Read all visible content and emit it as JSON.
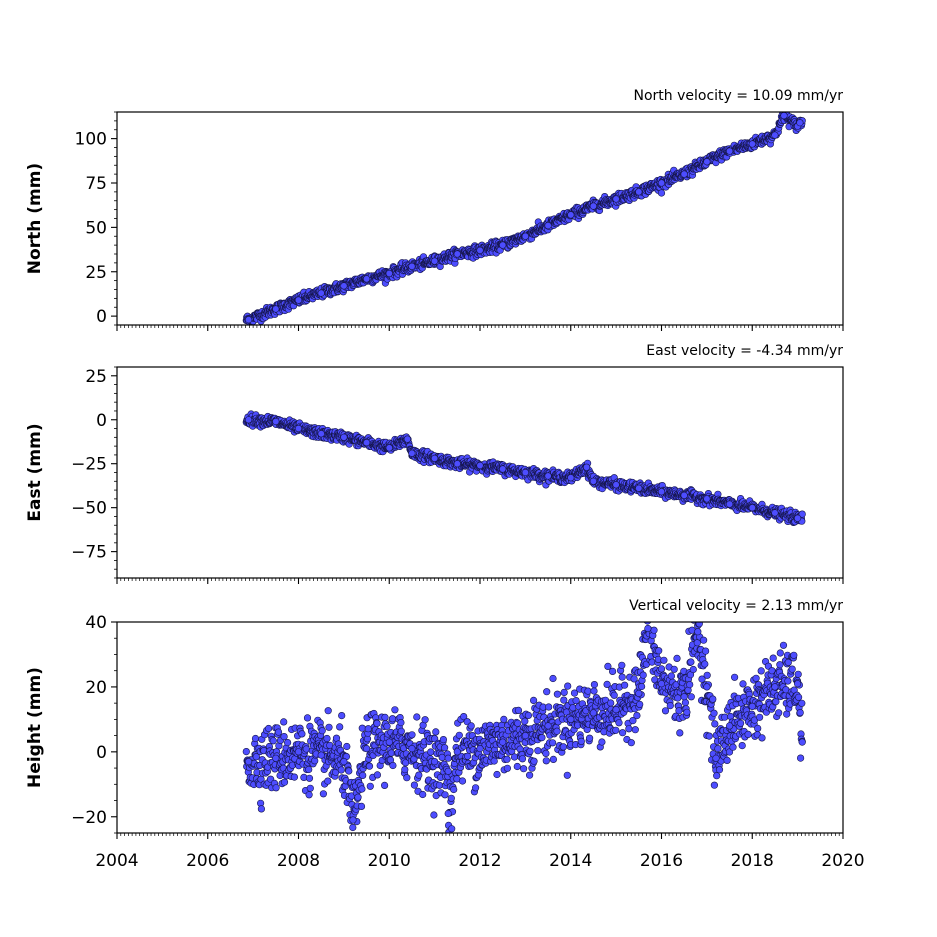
{
  "chart_data": [
    {
      "type": "scatter",
      "id": "north",
      "ylabel": "North (mm)",
      "annotation": "North velocity = 10.09 mm/yr",
      "xlim": [
        2004,
        2020
      ],
      "ylim": [
        -5,
        115
      ],
      "yticks": [
        0,
        25,
        50,
        75,
        100
      ],
      "yminor_step": 5,
      "xticks": [
        2004,
        2006,
        2008,
        2010,
        2012,
        2014,
        2016,
        2018,
        2020
      ],
      "show_xtick_labels": false,
      "x_start": 2006.85,
      "x_end": 2019.1,
      "velocity": 10.09,
      "series": [
        {
          "points": [
            [
              2006.9,
              -2
            ],
            [
              2007.5,
              4
            ],
            [
              2008.0,
              9
            ],
            [
              2008.5,
              13
            ],
            [
              2009.0,
              17
            ],
            [
              2009.5,
              21
            ],
            [
              2010.0,
              24
            ],
            [
              2010.5,
              28
            ],
            [
              2011.0,
              31
            ],
            [
              2011.5,
              35
            ],
            [
              2012.0,
              37
            ],
            [
              2012.5,
              40
            ],
            [
              2013.0,
              45
            ],
            [
              2013.5,
              51
            ],
            [
              2014.0,
              57
            ],
            [
              2014.5,
              62
            ],
            [
              2015.0,
              66
            ],
            [
              2015.5,
              70
            ],
            [
              2016.0,
              75
            ],
            [
              2016.5,
              80
            ],
            [
              2017.0,
              87
            ],
            [
              2017.5,
              93
            ],
            [
              2018.0,
              97
            ],
            [
              2018.5,
              102
            ],
            [
              2019.0,
              107
            ],
            [
              2019.05,
              109
            ],
            [
              2018.7,
              113
            ]
          ]
        }
      ]
    },
    {
      "type": "scatter",
      "id": "east",
      "ylabel": "East (mm)",
      "annotation": "East velocity = -4.34 mm/yr",
      "xlim": [
        2004,
        2020
      ],
      "ylim": [
        -90,
        30
      ],
      "yticks": [
        -75,
        -50,
        -25,
        0,
        25
      ],
      "yminor_step": 5,
      "xticks": [
        2004,
        2006,
        2008,
        2010,
        2012,
        2014,
        2016,
        2018,
        2020
      ],
      "show_xtick_labels": false,
      "x_start": 2006.85,
      "x_end": 2019.1,
      "velocity": -4.34,
      "series": [
        {
          "points": [
            [
              2006.9,
              0
            ],
            [
              2007.5,
              -1
            ],
            [
              2008.0,
              -5
            ],
            [
              2008.5,
              -8
            ],
            [
              2009.0,
              -10
            ],
            [
              2009.5,
              -13
            ],
            [
              2010.0,
              -16
            ],
            [
              2010.5,
              -19
            ],
            [
              2011.0,
              -22
            ],
            [
              2011.5,
              -25
            ],
            [
              2012.0,
              -26
            ],
            [
              2012.5,
              -28
            ],
            [
              2013.0,
              -30
            ],
            [
              2013.5,
              -32
            ],
            [
              2014.0,
              -33
            ],
            [
              2014.5,
              -35
            ],
            [
              2015.0,
              -37
            ],
            [
              2015.5,
              -39
            ],
            [
              2016.0,
              -41
            ],
            [
              2016.5,
              -43
            ],
            [
              2017.0,
              -45
            ],
            [
              2017.5,
              -48
            ],
            [
              2018.0,
              -50
            ],
            [
              2018.5,
              -53
            ],
            [
              2019.0,
              -56
            ],
            [
              2010.4,
              -11
            ],
            [
              2014.35,
              -27
            ]
          ]
        }
      ]
    },
    {
      "type": "scatter",
      "id": "height",
      "ylabel": "Height (mm)",
      "annotation": "Vertical velocity = 2.13 mm/yr",
      "xlim": [
        2004,
        2020
      ],
      "ylim": [
        -25,
        40
      ],
      "yticks": [
        -20,
        0,
        20,
        40
      ],
      "yminor_step": 5,
      "xticks": [
        2004,
        2006,
        2008,
        2010,
        2012,
        2014,
        2016,
        2018,
        2020
      ],
      "xtick_labels": [
        "2004",
        "2006",
        "2008",
        "2010",
        "2012",
        "2014",
        "2016",
        "2018",
        "2020"
      ],
      "show_xtick_labels": true,
      "x_start": 2006.85,
      "x_end": 2019.1,
      "velocity": 2.13,
      "series": [
        {
          "points": [
            [
              2006.9,
              -3
            ],
            [
              2007.5,
              -2
            ],
            [
              2008.0,
              0
            ],
            [
              2008.5,
              -1
            ],
            [
              2009.0,
              -3
            ],
            [
              2009.5,
              1
            ],
            [
              2010.0,
              3
            ],
            [
              2010.5,
              1
            ],
            [
              2011.0,
              -3
            ],
            [
              2011.3,
              -6
            ],
            [
              2011.5,
              0
            ],
            [
              2012.0,
              1
            ],
            [
              2012.5,
              3
            ],
            [
              2013.0,
              5
            ],
            [
              2013.5,
              8
            ],
            [
              2014.0,
              10
            ],
            [
              2014.5,
              12
            ],
            [
              2015.0,
              13
            ],
            [
              2015.5,
              18
            ],
            [
              2016.0,
              21
            ],
            [
              2016.5,
              17
            ],
            [
              2017.0,
              20
            ],
            [
              2017.2,
              -2
            ],
            [
              2017.5,
              8
            ],
            [
              2018.0,
              14
            ],
            [
              2018.5,
              20
            ],
            [
              2019.0,
              21
            ],
            [
              2015.7,
              38
            ],
            [
              2016.8,
              37
            ],
            [
              2009.2,
              -21
            ],
            [
              2011.3,
              -19
            ],
            [
              2019.1,
              3
            ]
          ]
        }
      ]
    }
  ]
}
